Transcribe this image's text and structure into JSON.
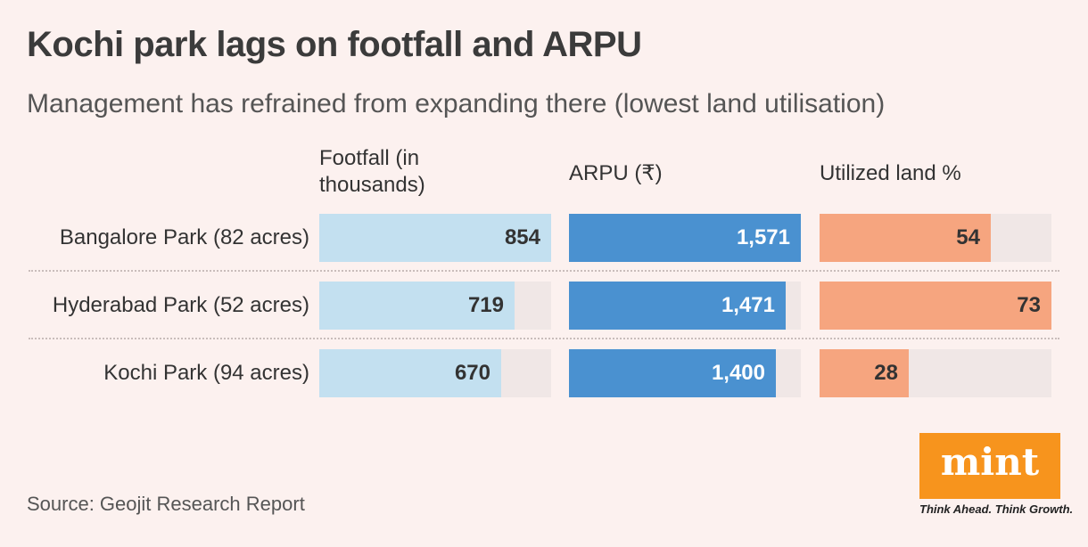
{
  "title": "Kochi park lags on footfall and ARPU",
  "subtitle": "Management has refrained from expanding there (lowest land utilisation)",
  "columns": [
    {
      "header_line1": "Footfall (in",
      "header_line2": "thousands)"
    },
    {
      "header_line1": "ARPU (₹)",
      "header_line2": ""
    },
    {
      "header_line1": "Utilized land %",
      "header_line2": ""
    }
  ],
  "rows": [
    {
      "label": "Bangalore Park (82 acres)",
      "footfall": "854",
      "arpu": "1,571",
      "land": "54"
    },
    {
      "label": "Hyderabad Park (52 acres)",
      "footfall": "719",
      "arpu": "1,471",
      "land": "73"
    },
    {
      "label": "Kochi Park (94 acres)",
      "footfall": "670",
      "arpu": "1,400",
      "land": "28"
    }
  ],
  "source": "Source: Geojit Research Report",
  "logo": {
    "text": "mint",
    "tagline": "Think Ahead. Think Growth."
  },
  "colors": {
    "footfall": "#c3e0f0",
    "arpu": "#4a91d0",
    "land": "#f6a57f",
    "track": "#f0e7e6",
    "logo": "#f7941d"
  },
  "chart_data": {
    "type": "bar",
    "categories": [
      "Bangalore Park (82 acres)",
      "Hyderabad Park (52 acres)",
      "Kochi Park (94 acres)"
    ],
    "series": [
      {
        "name": "Footfall (in thousands)",
        "values": [
          854,
          719,
          670
        ],
        "max": 854
      },
      {
        "name": "ARPU (₹)",
        "values": [
          1571,
          1471,
          1400
        ],
        "max": 1571
      },
      {
        "name": "Utilized land %",
        "values": [
          54,
          73,
          28
        ],
        "max": 73
      }
    ],
    "title": "Kochi park lags on footfall and ARPU",
    "subtitle": "Management has refrained from expanding there (lowest land utilisation)"
  }
}
